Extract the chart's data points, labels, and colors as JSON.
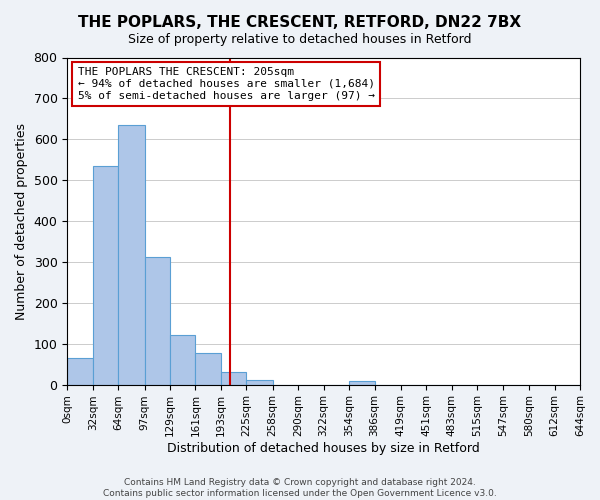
{
  "title": "THE POPLARS, THE CRESCENT, RETFORD, DN22 7BX",
  "subtitle": "Size of property relative to detached houses in Retford",
  "xlabel": "Distribution of detached houses by size in Retford",
  "ylabel": "Number of detached properties",
  "bar_left_edges": [
    0,
    32,
    64,
    97,
    129,
    161,
    193,
    225,
    258,
    290,
    322,
    354,
    386,
    419,
    451,
    483,
    515,
    547,
    580,
    612
  ],
  "bar_heights": [
    65,
    535,
    635,
    312,
    122,
    78,
    32,
    12,
    0,
    0,
    0,
    8,
    0,
    0,
    0,
    0,
    0,
    0,
    0,
    0
  ],
  "bar_widths": [
    32,
    32,
    33,
    32,
    32,
    32,
    32,
    33,
    32,
    32,
    32,
    32,
    33,
    32,
    32,
    32,
    32,
    33,
    32,
    32
  ],
  "bar_color": "#aec6e8",
  "bar_edgecolor": "#5a9fd4",
  "vline_x": 205,
  "vline_color": "#cc0000",
  "ylim": [
    0,
    800
  ],
  "yticks": [
    0,
    100,
    200,
    300,
    400,
    500,
    600,
    700,
    800
  ],
  "xtick_labels": [
    "0sqm",
    "32sqm",
    "64sqm",
    "97sqm",
    "129sqm",
    "161sqm",
    "193sqm",
    "225sqm",
    "258sqm",
    "290sqm",
    "322sqm",
    "354sqm",
    "386sqm",
    "419sqm",
    "451sqm",
    "483sqm",
    "515sqm",
    "547sqm",
    "580sqm",
    "612sqm",
    "644sqm"
  ],
  "annotation_title": "THE POPLARS THE CRESCENT: 205sqm",
  "annotation_line1": "← 94% of detached houses are smaller (1,684)",
  "annotation_line2": "5% of semi-detached houses are larger (97) →",
  "footer_line1": "Contains HM Land Registry data © Crown copyright and database right 2024.",
  "footer_line2": "Contains public sector information licensed under the Open Government Licence v3.0.",
  "background_color": "#eef2f7",
  "plot_bg_color": "#ffffff",
  "grid_color": "#cccccc"
}
